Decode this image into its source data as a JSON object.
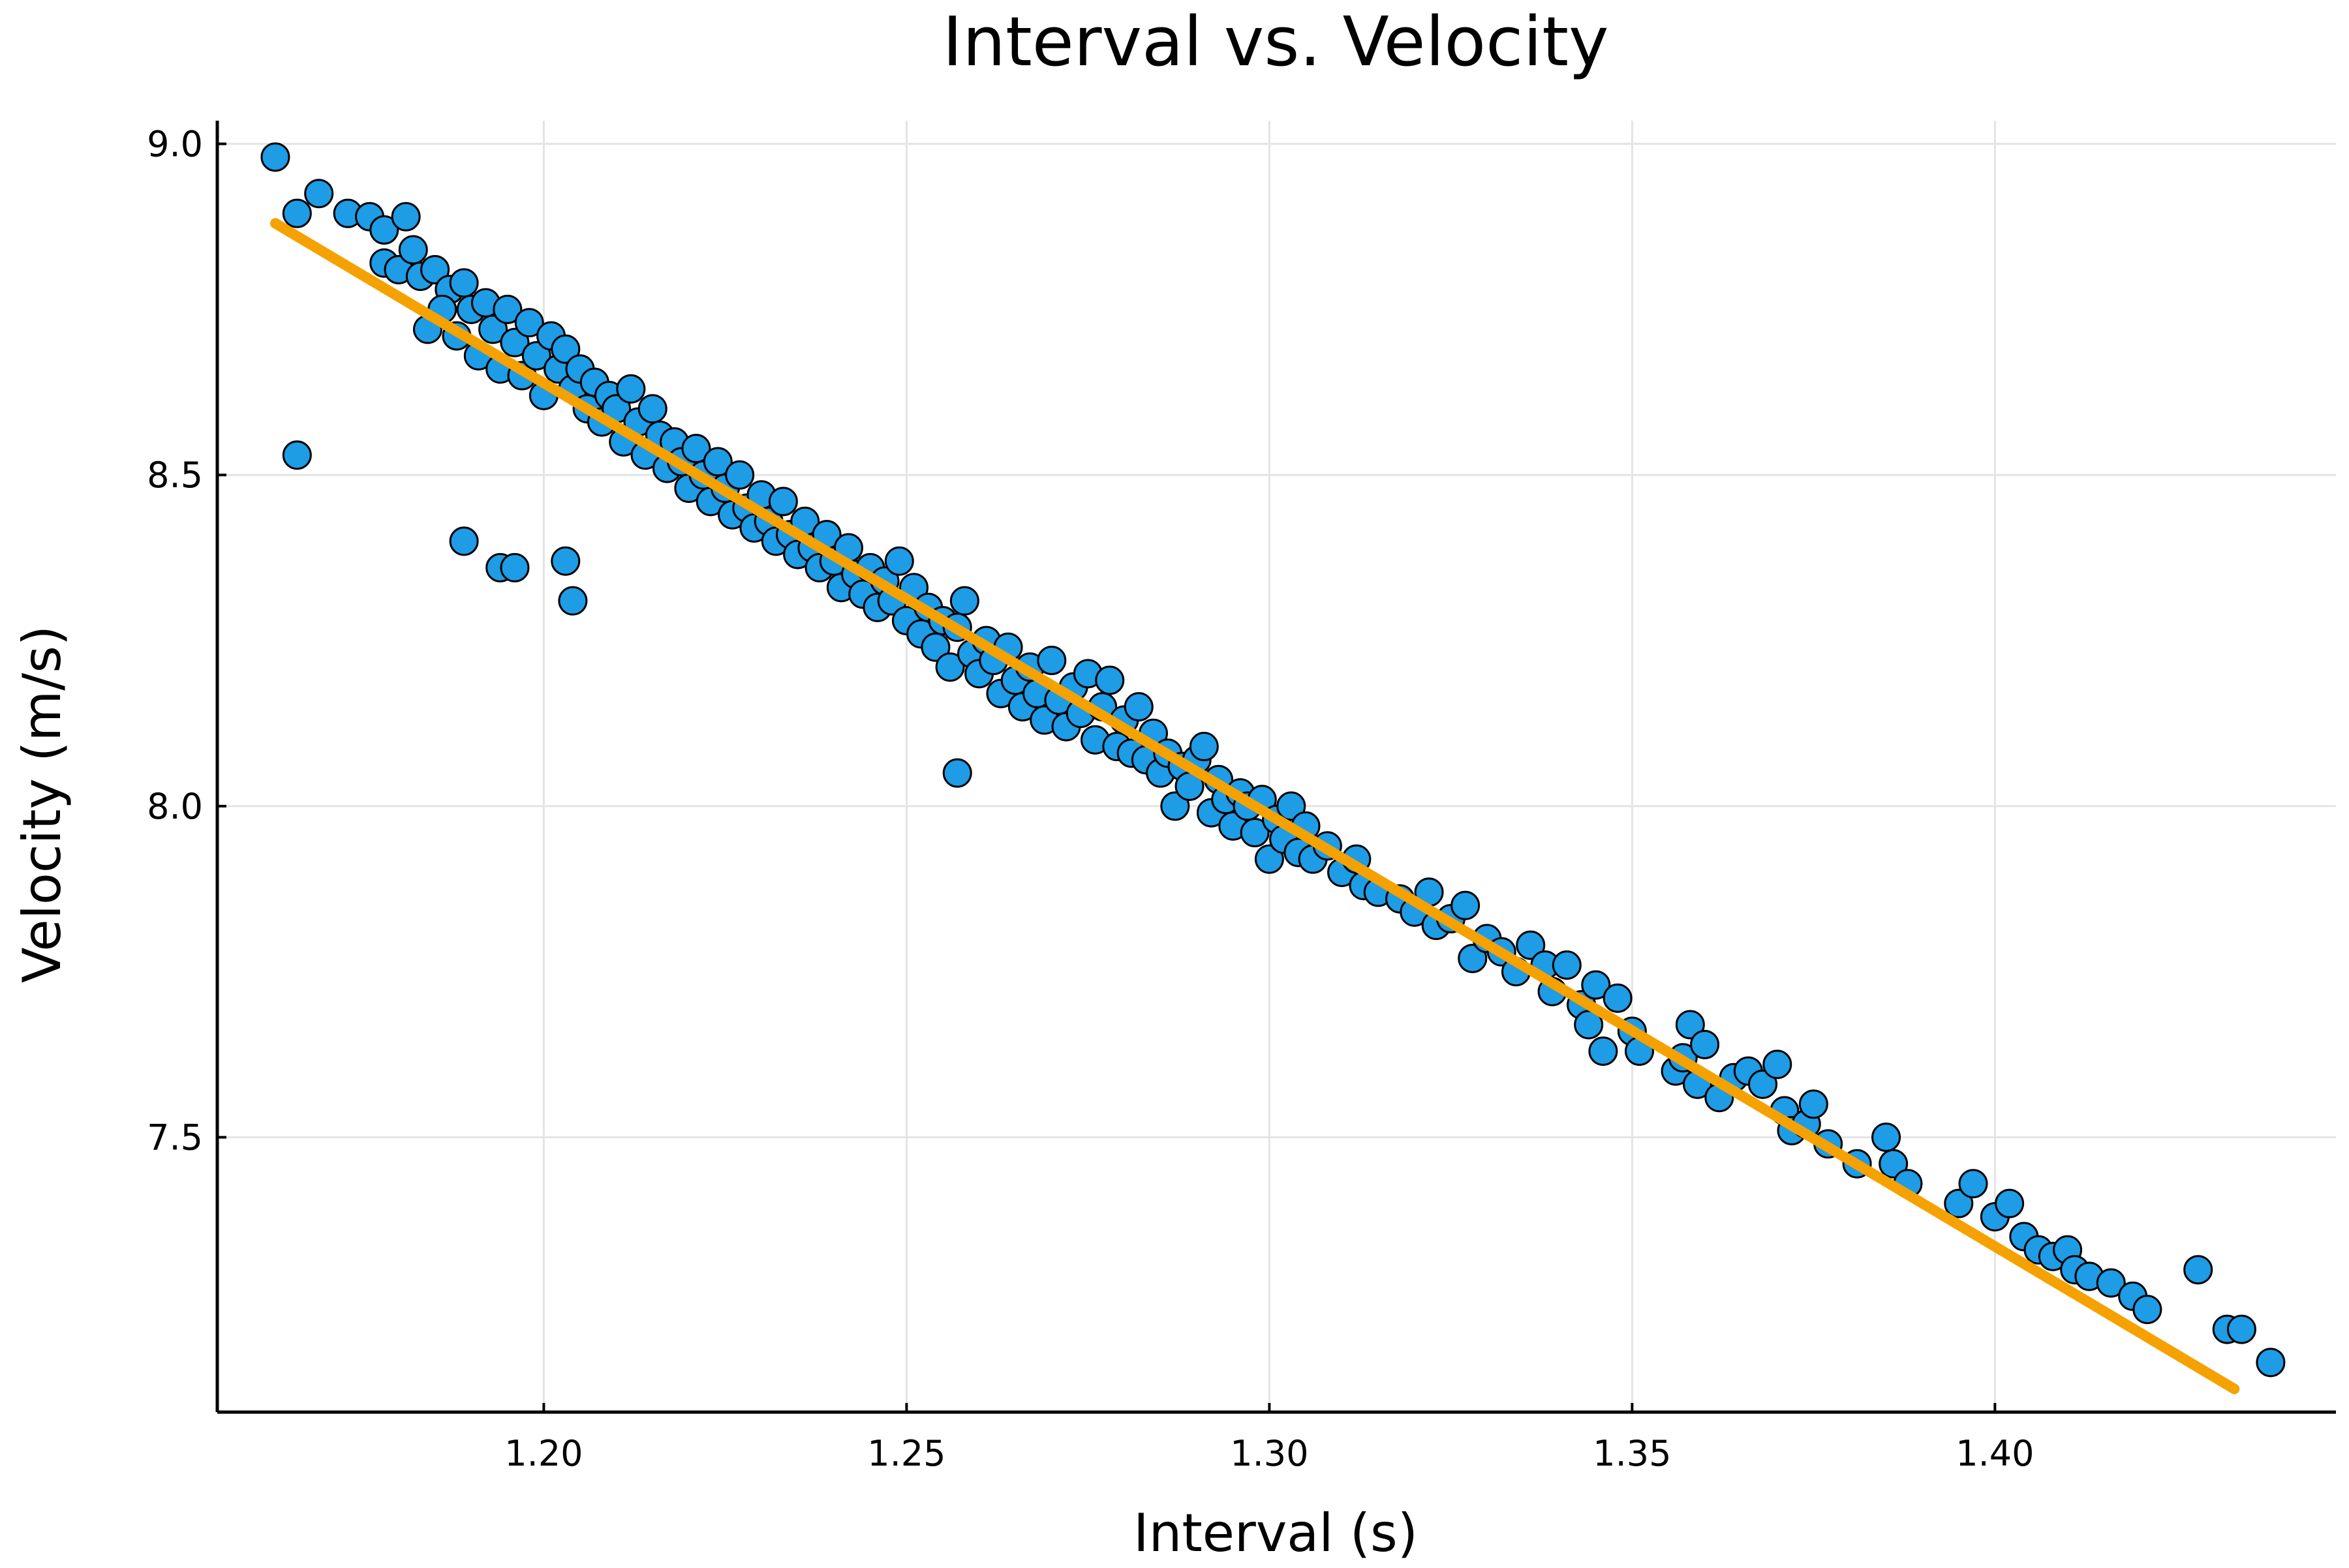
{
  "chart_data": {
    "type": "scatter",
    "title": "Interval vs. Velocity",
    "xlabel": "Interval (s)",
    "ylabel": "Velocity (m/s)",
    "xlim": [
      1.155,
      1.447
    ],
    "ylim": [
      7.085,
      9.035
    ],
    "xticks": [
      1.2,
      1.25,
      1.3,
      1.35,
      1.4
    ],
    "xtick_labels": [
      "1.20",
      "1.25",
      "1.30",
      "1.35",
      "1.40"
    ],
    "yticks": [
      7.5,
      8.0,
      8.5,
      9.0
    ],
    "ytick_labels": [
      "7.5",
      "8.0",
      "8.5",
      "9.0"
    ],
    "grid": true,
    "legend": "none",
    "colors": {
      "points": "#1e9ce5",
      "point_edge": "#000000",
      "fit_line": "#f5a100",
      "grid": "#e4e4e4",
      "axis": "#000000"
    },
    "series": [
      {
        "type": "scatter",
        "points": [
          [
            1.163,
            8.98
          ],
          [
            1.166,
            8.895
          ],
          [
            1.169,
            8.925
          ],
          [
            1.173,
            8.895
          ],
          [
            1.176,
            8.89
          ],
          [
            1.178,
            8.87
          ],
          [
            1.181,
            8.89
          ],
          [
            1.178,
            8.82
          ],
          [
            1.18,
            8.81
          ],
          [
            1.182,
            8.84
          ],
          [
            1.183,
            8.8
          ],
          [
            1.185,
            8.81
          ],
          [
            1.187,
            8.78
          ],
          [
            1.184,
            8.72
          ],
          [
            1.186,
            8.75
          ],
          [
            1.189,
            8.79
          ],
          [
            1.19,
            8.75
          ],
          [
            1.188,
            8.71
          ],
          [
            1.192,
            8.76
          ],
          [
            1.193,
            8.72
          ],
          [
            1.195,
            8.75
          ],
          [
            1.191,
            8.68
          ],
          [
            1.194,
            8.66
          ],
          [
            1.196,
            8.7
          ],
          [
            1.198,
            8.73
          ],
          [
            1.197,
            8.65
          ],
          [
            1.199,
            8.68
          ],
          [
            1.201,
            8.71
          ],
          [
            1.2,
            8.62
          ],
          [
            1.202,
            8.66
          ],
          [
            1.203,
            8.69
          ],
          [
            1.204,
            8.63
          ],
          [
            1.205,
            8.66
          ],
          [
            1.206,
            8.6
          ],
          [
            1.207,
            8.64
          ],
          [
            1.208,
            8.58
          ],
          [
            1.209,
            8.62
          ],
          [
            1.21,
            8.6
          ],
          [
            1.211,
            8.55
          ],
          [
            1.212,
            8.63
          ],
          [
            1.213,
            8.58
          ],
          [
            1.214,
            8.53
          ],
          [
            1.215,
            8.6
          ],
          [
            1.216,
            8.56
          ],
          [
            1.217,
            8.51
          ],
          [
            1.218,
            8.55
          ],
          [
            1.219,
            8.52
          ],
          [
            1.22,
            8.48
          ],
          [
            1.221,
            8.54
          ],
          [
            1.222,
            8.5
          ],
          [
            1.223,
            8.46
          ],
          [
            1.224,
            8.52
          ],
          [
            1.225,
            8.48
          ],
          [
            1.226,
            8.44
          ],
          [
            1.227,
            8.5
          ],
          [
            1.228,
            8.45
          ],
          [
            1.229,
            8.42
          ],
          [
            1.23,
            8.47
          ],
          [
            1.231,
            8.43
          ],
          [
            1.232,
            8.4
          ],
          [
            1.233,
            8.46
          ],
          [
            1.234,
            8.41
          ],
          [
            1.235,
            8.38
          ],
          [
            1.236,
            8.43
          ],
          [
            1.237,
            8.39
          ],
          [
            1.238,
            8.36
          ],
          [
            1.239,
            8.41
          ],
          [
            1.24,
            8.37
          ],
          [
            1.241,
            8.33
          ],
          [
            1.242,
            8.39
          ],
          [
            1.243,
            8.35
          ],
          [
            1.244,
            8.32
          ],
          [
            1.245,
            8.36
          ],
          [
            1.246,
            8.3
          ],
          [
            1.247,
            8.34
          ],
          [
            1.248,
            8.31
          ],
          [
            1.249,
            8.37
          ],
          [
            1.25,
            8.28
          ],
          [
            1.251,
            8.33
          ],
          [
            1.252,
            8.26
          ],
          [
            1.253,
            8.3
          ],
          [
            1.254,
            8.24
          ],
          [
            1.255,
            8.28
          ],
          [
            1.256,
            8.21
          ],
          [
            1.257,
            8.27
          ],
          [
            1.258,
            8.31
          ],
          [
            1.259,
            8.23
          ],
          [
            1.26,
            8.2
          ],
          [
            1.261,
            8.25
          ],
          [
            1.262,
            8.22
          ],
          [
            1.263,
            8.17
          ],
          [
            1.264,
            8.24
          ],
          [
            1.265,
            8.19
          ],
          [
            1.266,
            8.15
          ],
          [
            1.267,
            8.21
          ],
          [
            1.268,
            8.17
          ],
          [
            1.269,
            8.13
          ],
          [
            1.27,
            8.22
          ],
          [
            1.271,
            8.16
          ],
          [
            1.272,
            8.12
          ],
          [
            1.273,
            8.18
          ],
          [
            1.274,
            8.14
          ],
          [
            1.275,
            8.2
          ],
          [
            1.276,
            8.1
          ],
          [
            1.277,
            8.15
          ],
          [
            1.278,
            8.19
          ],
          [
            1.279,
            8.09
          ],
          [
            1.28,
            8.13
          ],
          [
            1.281,
            8.08
          ],
          [
            1.282,
            8.15
          ],
          [
            1.283,
            8.07
          ],
          [
            1.284,
            8.11
          ],
          [
            1.285,
            8.05
          ],
          [
            1.286,
            8.08
          ],
          [
            1.287,
            8.0
          ],
          [
            1.288,
            8.06
          ],
          [
            1.289,
            8.03
          ],
          [
            1.29,
            8.07
          ],
          [
            1.291,
            8.09
          ],
          [
            1.292,
            7.99
          ],
          [
            1.293,
            8.04
          ],
          [
            1.294,
            8.01
          ],
          [
            1.295,
            7.97
          ],
          [
            1.296,
            8.02
          ],
          [
            1.297,
            8.0
          ],
          [
            1.298,
            7.96
          ],
          [
            1.299,
            8.01
          ],
          [
            1.3,
            7.92
          ],
          [
            1.301,
            7.98
          ],
          [
            1.302,
            7.95
          ],
          [
            1.303,
            8.0
          ],
          [
            1.304,
            7.93
          ],
          [
            1.305,
            7.97
          ],
          [
            1.306,
            7.92
          ],
          [
            1.308,
            7.94
          ],
          [
            1.31,
            7.9
          ],
          [
            1.312,
            7.92
          ],
          [
            1.313,
            7.88
          ],
          [
            1.315,
            7.87
          ],
          [
            1.318,
            7.86
          ],
          [
            1.32,
            7.84
          ],
          [
            1.322,
            7.87
          ],
          [
            1.323,
            7.82
          ],
          [
            1.325,
            7.83
          ],
          [
            1.327,
            7.85
          ],
          [
            1.328,
            7.77
          ],
          [
            1.33,
            7.8
          ],
          [
            1.332,
            7.78
          ],
          [
            1.334,
            7.75
          ],
          [
            1.336,
            7.79
          ],
          [
            1.338,
            7.76
          ],
          [
            1.339,
            7.72
          ],
          [
            1.341,
            7.76
          ],
          [
            1.343,
            7.7
          ],
          [
            1.344,
            7.67
          ],
          [
            1.345,
            7.73
          ],
          [
            1.346,
            7.63
          ],
          [
            1.348,
            7.71
          ],
          [
            1.35,
            7.66
          ],
          [
            1.351,
            7.63
          ],
          [
            1.356,
            7.6
          ],
          [
            1.357,
            7.62
          ],
          [
            1.358,
            7.67
          ],
          [
            1.359,
            7.58
          ],
          [
            1.36,
            7.64
          ],
          [
            1.362,
            7.56
          ],
          [
            1.364,
            7.59
          ],
          [
            1.366,
            7.6
          ],
          [
            1.368,
            7.58
          ],
          [
            1.37,
            7.61
          ],
          [
            1.371,
            7.54
          ],
          [
            1.372,
            7.51
          ],
          [
            1.374,
            7.52
          ],
          [
            1.375,
            7.55
          ],
          [
            1.377,
            7.49
          ],
          [
            1.381,
            7.46
          ],
          [
            1.385,
            7.5
          ],
          [
            1.386,
            7.46
          ],
          [
            1.388,
            7.43
          ],
          [
            1.395,
            7.4
          ],
          [
            1.397,
            7.43
          ],
          [
            1.4,
            7.38
          ],
          [
            1.402,
            7.4
          ],
          [
            1.404,
            7.35
          ],
          [
            1.406,
            7.33
          ],
          [
            1.408,
            7.32
          ],
          [
            1.41,
            7.33
          ],
          [
            1.411,
            7.3
          ],
          [
            1.413,
            7.29
          ],
          [
            1.416,
            7.28
          ],
          [
            1.419,
            7.26
          ],
          [
            1.421,
            7.24
          ],
          [
            1.428,
            7.3
          ],
          [
            1.432,
            7.21
          ],
          [
            1.434,
            7.21
          ],
          [
            1.438,
            7.16
          ],
          [
            1.166,
            8.53
          ],
          [
            1.189,
            8.4
          ],
          [
            1.194,
            8.36
          ],
          [
            1.196,
            8.36
          ],
          [
            1.203,
            8.37
          ],
          [
            1.204,
            8.31
          ],
          [
            1.257,
            8.05
          ]
        ]
      },
      {
        "type": "line",
        "points": [
          [
            1.163,
            8.88
          ],
          [
            1.433,
            7.12
          ]
        ]
      }
    ]
  }
}
